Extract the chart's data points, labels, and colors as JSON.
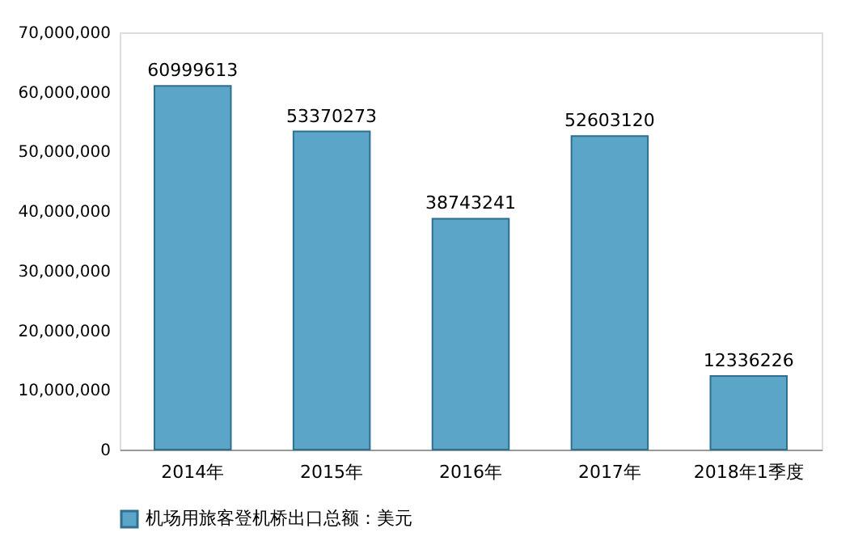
{
  "chart_data": {
    "type": "bar",
    "categories": [
      "2014年",
      "2015年",
      "2016年",
      "2017年",
      "2018年1季度"
    ],
    "series": [
      {
        "name": "机场用旅客登机桥出口总额：美元",
        "color": "#5aa5c8",
        "values": [
          60999613,
          53370273,
          38743241,
          52603120,
          12336226
        ]
      }
    ],
    "ylim": [
      0,
      70000000
    ],
    "yticks": [
      0,
      {
        "value": 10000000,
        "label": "10,000,000"
      },
      {
        "value": 20000000,
        "label": "20,000,000"
      },
      {
        "value": 30000000,
        "label": "30,000,000"
      },
      {
        "value": 40000000,
        "label": "40,000,000"
      },
      {
        "value": 50000000,
        "label": "50,000,000"
      },
      {
        "value": 60000000,
        "label": "60,000,000"
      },
      {
        "value": 70000000,
        "label": "70,000,000"
      }
    ],
    "data_labels": true,
    "grid": false,
    "legend": "bottom"
  }
}
